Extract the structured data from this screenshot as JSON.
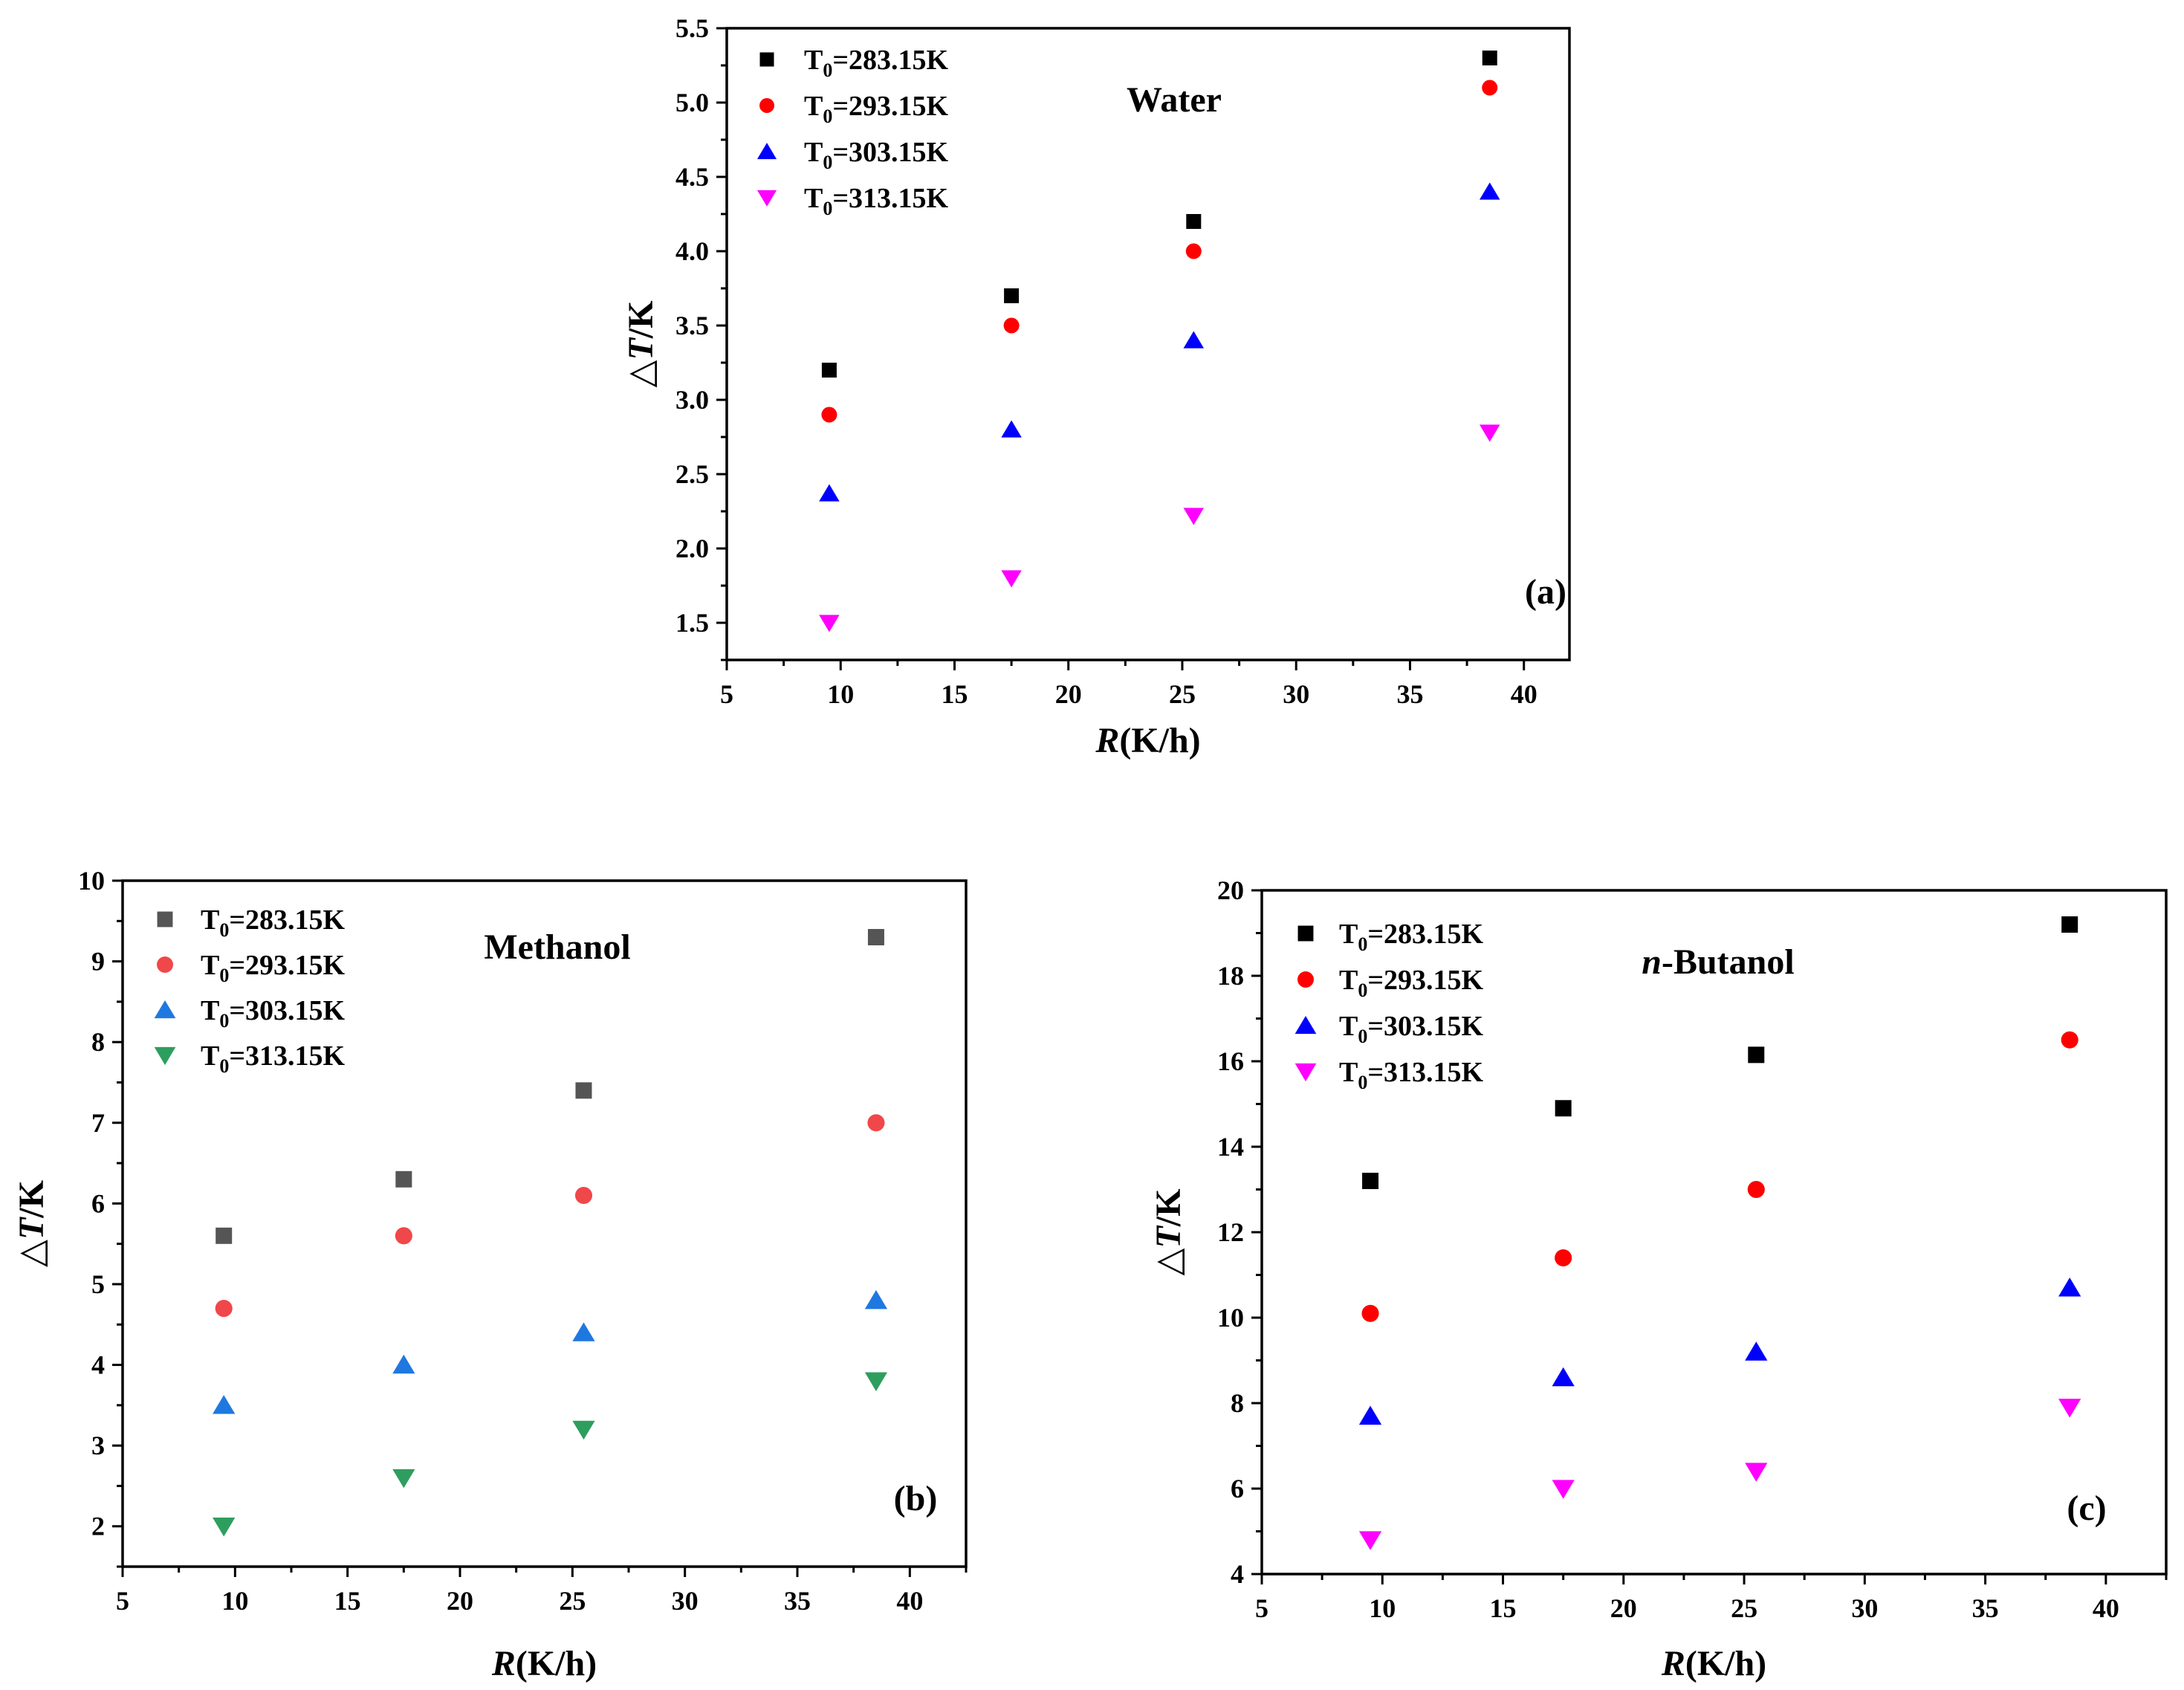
{
  "chart_data": [
    {
      "panel": "(a)",
      "type": "scatter",
      "annotation": "Water",
      "annotation_italic_prefix": "",
      "xlabel": {
        "italic": "R",
        "rest": "(K/h)"
      },
      "ylabel": {
        "prefix": "△",
        "italic": "T",
        "rest": "/K"
      },
      "xlim": [
        5,
        42
      ],
      "ylim": [
        1.25,
        5.5
      ],
      "xticks": [
        5,
        10,
        15,
        20,
        25,
        30,
        35,
        40
      ],
      "yticks": [
        1.5,
        2.0,
        2.5,
        3.0,
        3.5,
        4.0,
        4.5,
        5.0,
        5.5
      ],
      "ytick_decimals": 1,
      "x": [
        9.5,
        17.5,
        25.5,
        38.5
      ],
      "series": [
        {
          "name": "T0=283.15K",
          "base": "T",
          "sub": "0",
          "rest": "=283.15K",
          "marker": "square",
          "color": "#000000",
          "values": [
            3.2,
            3.7,
            4.2,
            5.3
          ]
        },
        {
          "name": "T0=293.15K",
          "base": "T",
          "sub": "0",
          "rest": "=293.15K",
          "marker": "circle",
          "color": "#ff0000",
          "values": [
            2.9,
            3.5,
            4.0,
            5.1
          ]
        },
        {
          "name": "T0=303.15K",
          "base": "T",
          "sub": "0",
          "rest": "=303.15K",
          "marker": "triangle-up",
          "color": "#0000ff",
          "values": [
            2.37,
            2.8,
            3.4,
            4.4
          ]
        },
        {
          "name": "T0=313.15K",
          "base": "T",
          "sub": "0",
          "rest": "=313.15K",
          "marker": "triangle-down",
          "color": "#ff00ff",
          "values": [
            1.5,
            1.8,
            2.22,
            2.78
          ]
        }
      ]
    },
    {
      "panel": "(b)",
      "type": "scatter",
      "annotation": "Methanol",
      "annotation_italic_prefix": "",
      "xlabel": {
        "italic": "R",
        "rest": "(K/h)"
      },
      "ylabel": {
        "prefix": "△",
        "italic": "T",
        "rest": "/K"
      },
      "xlim": [
        5,
        42.5
      ],
      "ylim": [
        1.5,
        10
      ],
      "xticks": [
        5,
        10,
        15,
        20,
        25,
        30,
        35,
        40
      ],
      "yticks": [
        2,
        3,
        4,
        5,
        6,
        7,
        8,
        9,
        10
      ],
      "ytick_decimals": 0,
      "x": [
        9.5,
        17.5,
        25.5,
        38.5
      ],
      "series": [
        {
          "name": "T0=283.15K",
          "base": "T",
          "sub": "0",
          "rest": "=283.15K",
          "marker": "square",
          "color": "#555555",
          "values": [
            5.6,
            6.3,
            7.4,
            9.3
          ]
        },
        {
          "name": "T0=293.15K",
          "base": "T",
          "sub": "0",
          "rest": "=293.15K",
          "marker": "circle",
          "color": "#f0474a",
          "values": [
            4.7,
            5.6,
            6.1,
            7.0
          ]
        },
        {
          "name": "T0=303.15K",
          "base": "T",
          "sub": "0",
          "rest": "=303.15K",
          "marker": "triangle-up",
          "color": "#1f78e0",
          "values": [
            3.5,
            4.0,
            4.4,
            4.8
          ]
        },
        {
          "name": "T0=313.15K",
          "base": "T",
          "sub": "0",
          "rest": "=313.15K",
          "marker": "triangle-down",
          "color": "#2e9e5e",
          "values": [
            2.0,
            2.6,
            3.2,
            3.8
          ]
        }
      ]
    },
    {
      "panel": "(c)",
      "type": "scatter",
      "annotation": "-Butanol",
      "annotation_italic_prefix": "n",
      "xlabel": {
        "italic": "R",
        "rest": "(K/h)"
      },
      "ylabel": {
        "prefix": "△",
        "italic": "T",
        "rest": "/K"
      },
      "xlim": [
        5,
        42.5
      ],
      "ylim": [
        4,
        20
      ],
      "xticks": [
        5,
        10,
        15,
        20,
        25,
        30,
        35,
        40
      ],
      "yticks": [
        4,
        6,
        8,
        10,
        12,
        14,
        16,
        18,
        20
      ],
      "ytick_decimals": 0,
      "x": [
        9.5,
        17.5,
        25.5,
        38.5
      ],
      "series": [
        {
          "name": "T0=283.15K",
          "base": "T",
          "sub": "0",
          "rest": "=283.15K",
          "marker": "square",
          "color": "#000000",
          "values": [
            13.2,
            14.9,
            16.15,
            19.2
          ]
        },
        {
          "name": "T0=293.15K",
          "base": "T",
          "sub": "0",
          "rest": "=293.15K",
          "marker": "circle",
          "color": "#ff0000",
          "values": [
            10.1,
            11.4,
            13.0,
            16.5
          ]
        },
        {
          "name": "T0=303.15K",
          "base": "T",
          "sub": "0",
          "rest": "=303.15K",
          "marker": "triangle-up",
          "color": "#0000ff",
          "values": [
            7.7,
            8.6,
            9.2,
            10.7
          ]
        },
        {
          "name": "T0=313.15K",
          "base": "T",
          "sub": "0",
          "rest": "=313.15K",
          "marker": "triangle-down",
          "color": "#ff00ff",
          "values": [
            4.8,
            6.0,
            6.4,
            7.9
          ]
        }
      ]
    }
  ]
}
